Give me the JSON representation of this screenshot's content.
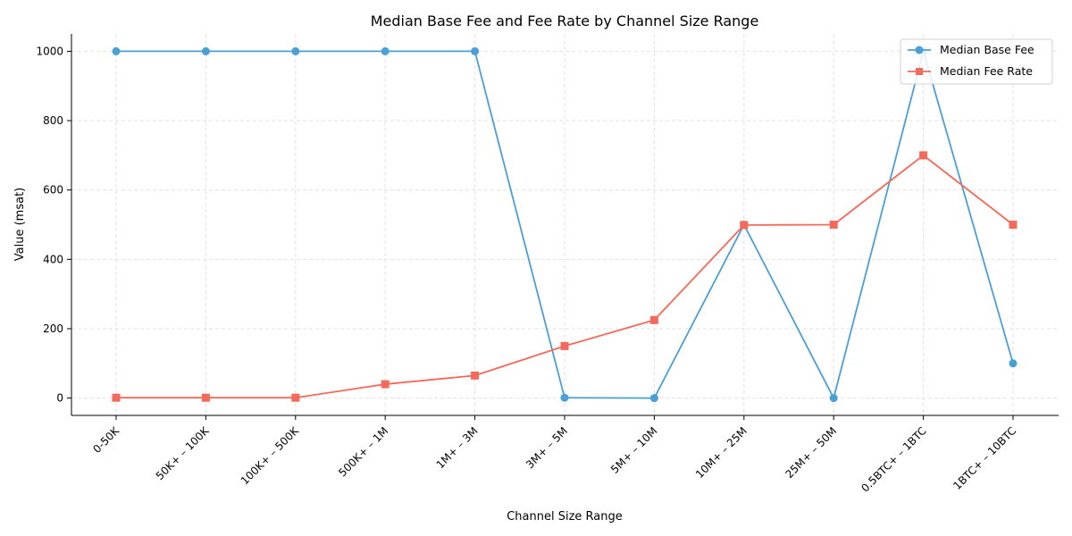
{
  "chart_data": {
    "type": "line",
    "title": "Median Base Fee and Fee Rate by Channel Size Range",
    "xlabel": "Channel Size Range",
    "ylabel": "Value (msat)",
    "categories": [
      "0-50K",
      "50K+ – 100K",
      "100K+ – 500K",
      "500K+ – 1M",
      "1M+ – 3M",
      "3M+ – 5M",
      "5M+ – 10M",
      "10M+ – 25M",
      "25M+ – 50M",
      "0.5BTC+ – 1BTC",
      "1BTC+ – 10BTC"
    ],
    "ylim": [
      -50,
      1050
    ],
    "yticks": [
      0,
      200,
      400,
      600,
      800,
      1000
    ],
    "grid": true,
    "legend_position": "top-right",
    "series": [
      {
        "name": "Median Base Fee",
        "color": "#4a9fd4",
        "marker": "circle",
        "values": [
          1000,
          1000,
          1000,
          1000,
          1000,
          1,
          0,
          500,
          0,
          1000,
          100
        ]
      },
      {
        "name": "Median Fee Rate",
        "color": "#f4695a",
        "marker": "square",
        "values": [
          1,
          1,
          1,
          40,
          65,
          150,
          225,
          499,
          500,
          700,
          500
        ]
      }
    ]
  }
}
